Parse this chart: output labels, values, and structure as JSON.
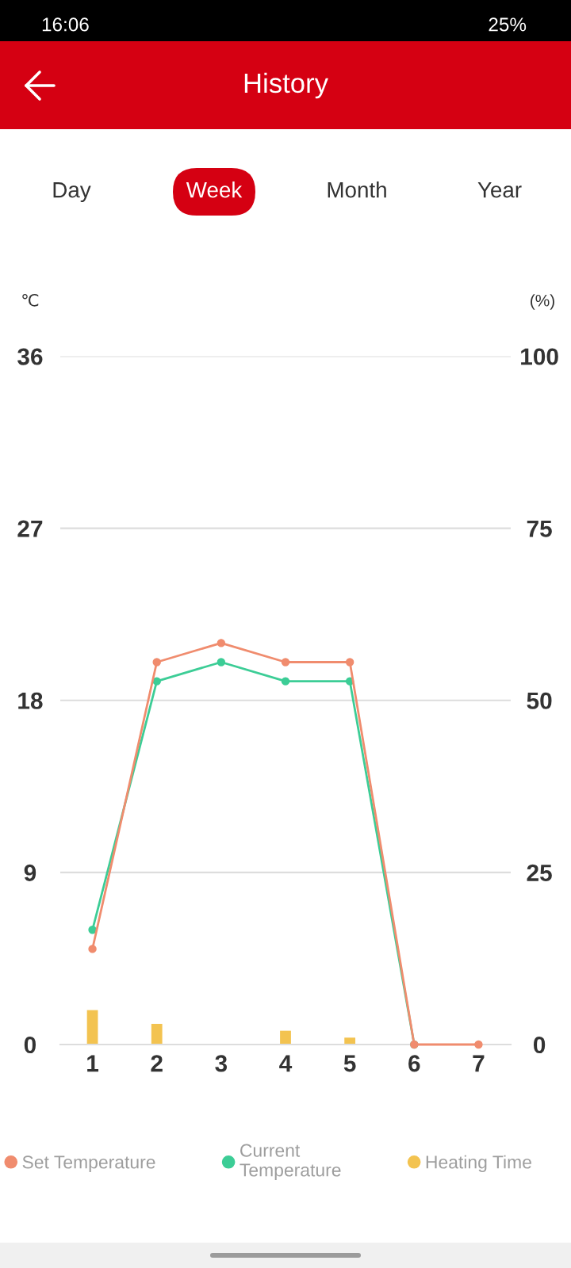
{
  "chart_data": {
    "type": "line",
    "title": "History",
    "annotations": [
      "16:06",
      "25%",
      "Day",
      "Week",
      "Month",
      "Year"
    ],
    "ylabel": "℃",
    "y2label": "(%)",
    "categories": [
      "1",
      "2",
      "3",
      "4",
      "5",
      "6",
      "7"
    ],
    "series": [
      {
        "name": "Set Temperature",
        "color": "#f08c6e",
        "values": [
          5,
          20,
          21,
          20,
          20,
          0,
          0
        ]
      },
      {
        "name": "Current Temperature",
        "color": "#3ccd96",
        "values": [
          6,
          19,
          20,
          19,
          19,
          0,
          null
        ]
      },
      {
        "name": "Heating Time",
        "type": "bar",
        "axis": "y2",
        "color": "#f3c350",
        "values": [
          5,
          3,
          0,
          2,
          1,
          0,
          0
        ]
      }
    ],
    "ylim": [
      0,
      36
    ],
    "yticks": [
      0,
      9,
      18,
      27,
      36
    ],
    "y2lim": [
      0,
      100
    ],
    "y2ticks": [
      0,
      25,
      50,
      75,
      100
    ],
    "grid": "y",
    "legend": "bottom",
    "marker": "circle"
  }
}
